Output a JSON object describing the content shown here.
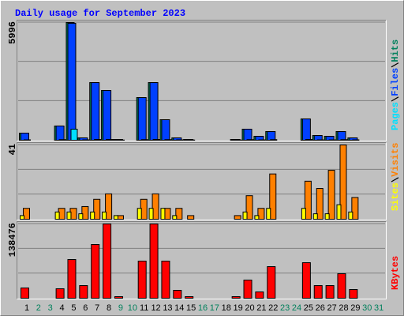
{
  "chart_data": [
    {
      "type": "bar",
      "title": "Daily usage for September 2023",
      "ylim": [
        0,
        5996
      ],
      "yticks": [
        5996
      ],
      "series": [
        {
          "name": "Hits",
          "color": "#00805c",
          "values": [
            362,
            null,
            null,
            725,
            5996,
            120,
            2937,
            2535,
            40,
            null,
            2173,
            2937,
            1046,
            120,
            40,
            null,
            null,
            null,
            40,
            563,
            200,
            443,
            null,
            null,
            1086,
            241,
            200,
            443,
            120,
            null,
            null
          ]
        },
        {
          "name": "Files",
          "color": "#0040ff",
          "values": [
            362,
            null,
            null,
            725,
            5956,
            120,
            2937,
            2535,
            40,
            null,
            2173,
            2937,
            1046,
            120,
            40,
            null,
            null,
            null,
            40,
            563,
            200,
            443,
            null,
            null,
            1086,
            241,
            200,
            443,
            120,
            null,
            null
          ]
        },
        {
          "name": "Pages",
          "color": "#00e0ff",
          "values": [
            20,
            null,
            null,
            30,
            563,
            20,
            40,
            40,
            10,
            null,
            30,
            40,
            30,
            20,
            10,
            null,
            null,
            null,
            10,
            30,
            20,
            30,
            null,
            null,
            40,
            20,
            20,
            30,
            20,
            null,
            null
          ]
        }
      ]
    },
    {
      "type": "bar",
      "ylim": [
        0,
        41
      ],
      "yticks": [
        41
      ],
      "series": [
        {
          "name": "Visits",
          "color": "#ff8000",
          "values": [
            6,
            null,
            null,
            6,
            6,
            7,
            11,
            14,
            2,
            null,
            11,
            14,
            6,
            6,
            2,
            null,
            null,
            null,
            2,
            13,
            6,
            25,
            null,
            null,
            21,
            17,
            27,
            41,
            12,
            null,
            null
          ]
        },
        {
          "name": "Sites",
          "color": "#ffff00",
          "values": [
            2,
            null,
            null,
            4,
            4,
            3,
            4,
            4,
            2,
            null,
            6,
            6,
            6,
            2,
            null,
            null,
            null,
            null,
            null,
            4,
            2,
            6,
            null,
            null,
            6,
            3,
            3,
            8,
            4,
            null,
            null
          ]
        }
      ]
    },
    {
      "type": "bar",
      "ylim": [
        0,
        138476
      ],
      "yticks": [
        138476
      ],
      "categories": [
        "1",
        "2",
        "3",
        "4",
        "5",
        "6",
        "7",
        "8",
        "9",
        "10",
        "11",
        "12",
        "13",
        "14",
        "15",
        "16",
        "17",
        "18",
        "19",
        "20",
        "21",
        "22",
        "23",
        "24",
        "25",
        "26",
        "27",
        "28",
        "29",
        "30",
        "31"
      ],
      "category_colors": [
        "#000000",
        "#00805c",
        "#00805c",
        "#000000",
        "#000000",
        "#000000",
        "#000000",
        "#000000",
        "#00805c",
        "#00805c",
        "#000000",
        "#000000",
        "#000000",
        "#000000",
        "#000000",
        "#00805c",
        "#00805c",
        "#000000",
        "#000000",
        "#000000",
        "#000000",
        "#000000",
        "#00805c",
        "#00805c",
        "#000000",
        "#000000",
        "#000000",
        "#000000",
        "#000000",
        "#00805c",
        "#00805c"
      ],
      "series": [
        {
          "name": "KBytes",
          "color": "#ff0000",
          "values": [
            19151,
            null,
            null,
            17678,
            72185,
            23570,
            100174,
            138476,
            2946,
            null,
            69239,
            138476,
            69239,
            14731,
            2946,
            null,
            null,
            null,
            2946,
            33883,
            11785,
            58926,
            null,
            null,
            66292,
            23570,
            23570,
            45668,
            16205,
            null,
            null
          ]
        }
      ]
    }
  ]
}
